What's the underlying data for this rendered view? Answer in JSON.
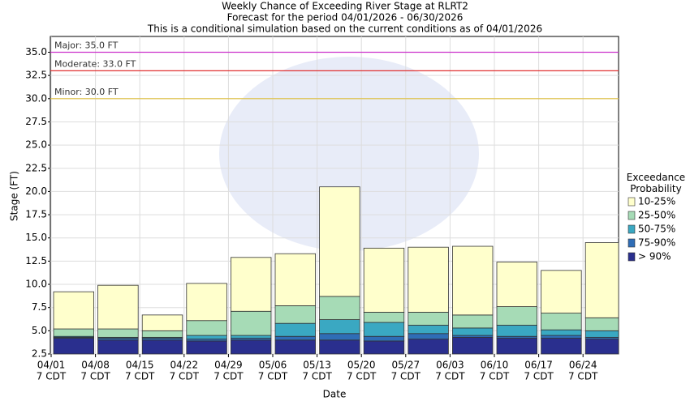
{
  "chart_data": {
    "type": "exceedance_bar",
    "title": "Weekly Chance of Exceeding River Stage at RLRT2",
    "subtitle": "Forecast for the period 04/01/2026 - 06/30/2026",
    "note": "This is a conditional simulation based on the current conditions as of 04/01/2026",
    "x_label": "Date",
    "y_label": "Stage (FT)",
    "categories": [
      "04/01",
      "04/08",
      "04/15",
      "04/22",
      "04/29",
      "05/06",
      "05/13",
      "05/20",
      "05/27",
      "06/03",
      "06/10",
      "06/17",
      "06/24"
    ],
    "category_sublabel": "7 CDT",
    "ylim": [
      2.5,
      36.7
    ],
    "yticks": [
      2.5,
      {
        "value": 5,
        "label": "5.0"
      },
      7.5,
      {
        "value": 10,
        "label": "10.0"
      },
      12.5,
      {
        "value": 15,
        "label": "15.0"
      },
      17.5,
      {
        "value": 20,
        "label": "20.0"
      },
      22.5,
      {
        "value": 25,
        "label": "25.0"
      },
      27.5,
      {
        "value": 30,
        "label": "30.0"
      },
      32.5,
      {
        "value": 35,
        "label": "35.0"
      }
    ],
    "grid": true,
    "legend_title": "Exceedance Probability",
    "series": [
      {
        "name": "> 90%",
        "color": "#2a2f8e",
        "values": [
          4.2,
          4.0,
          4.0,
          3.9,
          4.0,
          4.0,
          4.0,
          3.9,
          4.1,
          4.3,
          4.2,
          4.2,
          4.1
        ]
      },
      {
        "name": "75-90%",
        "color": "#2f6db6",
        "values": [
          4.3,
          4.2,
          4.2,
          4.1,
          4.2,
          4.4,
          4.7,
          4.4,
          4.7,
          4.5,
          4.4,
          4.5,
          4.3
        ]
      },
      {
        "name": "50-75%",
        "color": "#3aa8c2",
        "values": [
          4.4,
          4.3,
          4.3,
          4.5,
          4.5,
          5.8,
          6.2,
          5.9,
          5.6,
          5.3,
          5.6,
          5.1,
          5.0
        ]
      },
      {
        "name": "25-50%",
        "color": "#a6dbb6",
        "values": [
          5.2,
          5.2,
          5.0,
          6.1,
          7.1,
          7.7,
          8.7,
          7.0,
          7.0,
          6.7,
          7.6,
          6.9,
          6.4
        ]
      },
      {
        "name": "10-25%",
        "color": "#ffffcc",
        "values": [
          9.2,
          9.9,
          6.7,
          10.1,
          12.9,
          13.3,
          20.5,
          13.9,
          14.0,
          14.1,
          12.4,
          11.5,
          14.5
        ]
      }
    ],
    "reference_lines": [
      {
        "label": "Major: 35.0 FT",
        "value": 35,
        "color": "#cc33cc"
      },
      {
        "label": "Moderate: 33.0 FT",
        "value": 33,
        "color": "#e03030"
      },
      {
        "label": "Minor: 30.0 FT",
        "value": 30,
        "color": "#e0c040"
      }
    ]
  }
}
